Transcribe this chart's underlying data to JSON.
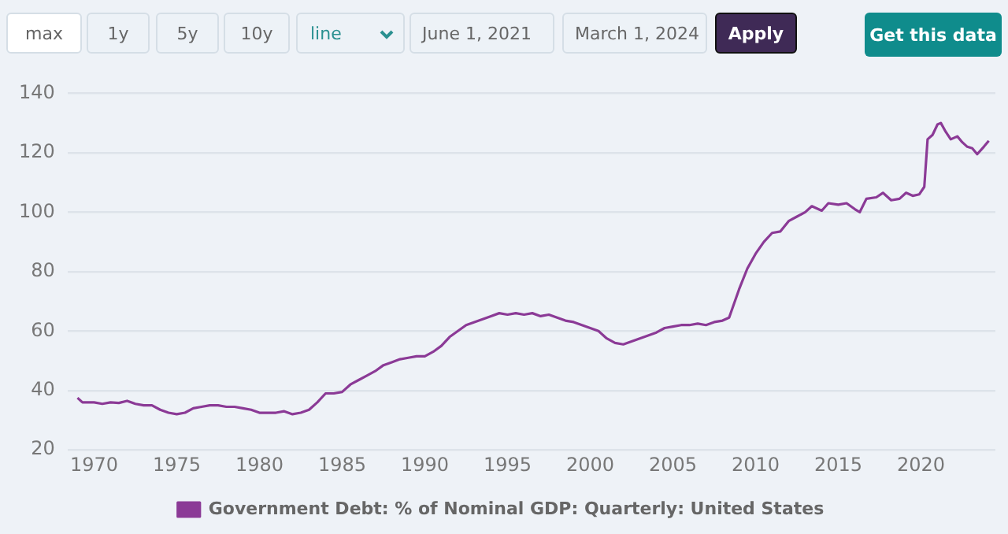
{
  "chart_data": {
    "type": "line",
    "annotations": [
      "max",
      "1y",
      "5y",
      "10y",
      "line",
      "June 1, 2021",
      "March 1, 2024",
      "Apply",
      "Get this data"
    ],
    "x": [
      1969.0,
      1969.3,
      1970.0,
      1970.5,
      1971.0,
      1971.5,
      1972.0,
      1972.5,
      1973.0,
      1973.5,
      1974.0,
      1974.5,
      1975.0,
      1975.5,
      1976.0,
      1976.5,
      1977.0,
      1977.5,
      1978.0,
      1978.5,
      1979.0,
      1979.5,
      1980.0,
      1980.5,
      1981.0,
      1981.5,
      1982.0,
      1982.5,
      1983.0,
      1983.5,
      1984.0,
      1984.5,
      1985.0,
      1985.5,
      1986.0,
      1986.5,
      1987.0,
      1987.5,
      1988.0,
      1988.5,
      1989.0,
      1989.5,
      1990.0,
      1990.5,
      1991.0,
      1991.5,
      1992.0,
      1992.5,
      1993.0,
      1993.5,
      1994.0,
      1994.5,
      1995.0,
      1995.5,
      1996.0,
      1996.5,
      1997.0,
      1997.5,
      1998.0,
      1998.5,
      1999.0,
      1999.5,
      2000.0,
      2000.5,
      2001.0,
      2001.5,
      2002.0,
      2002.5,
      2003.0,
      2003.5,
      2004.0,
      2004.5,
      2005.0,
      2005.5,
      2006.0,
      2006.5,
      2007.0,
      2007.5,
      2008.0,
      2008.4,
      2009.0,
      2009.5,
      2010.0,
      2010.5,
      2011.0,
      2011.5,
      2012.0,
      2012.5,
      2013.0,
      2013.4,
      2014.0,
      2014.4,
      2015.0,
      2015.5,
      2016.0,
      2016.3,
      2016.7,
      2017.3,
      2017.7,
      2018.2,
      2018.7,
      2019.1,
      2019.5,
      2019.9,
      2020.2,
      2020.4,
      2020.7,
      2021.0,
      2021.2,
      2021.5,
      2021.8,
      2022.2,
      2022.5,
      2022.8,
      2023.1,
      2023.4,
      2023.8,
      2024.1
    ],
    "series": [
      {
        "name": "Government Debt: % of Nominal GDP: Quarterly: United States",
        "color": "#8b3a96",
        "values": [
          37.5,
          36,
          36,
          35.5,
          36,
          35.8,
          36.5,
          35.5,
          35,
          35,
          33.5,
          32.5,
          32,
          32.5,
          34,
          34.5,
          35,
          35,
          34.5,
          34.5,
          34,
          33.5,
          32.5,
          32.5,
          32.5,
          33,
          32,
          32.5,
          33.5,
          36,
          39,
          39,
          39.5,
          42,
          43.5,
          45,
          46.5,
          48.5,
          49.5,
          50.5,
          51,
          51.5,
          51.5,
          53,
          55,
          58,
          60,
          62,
          63,
          64,
          65,
          66,
          65.5,
          66,
          65.5,
          66,
          65,
          65.5,
          64.5,
          63.5,
          63,
          62,
          61,
          60,
          57.5,
          56,
          55.5,
          56.5,
          57.5,
          58.5,
          59.5,
          61,
          61.5,
          62,
          62,
          62.5,
          62,
          63,
          63.5,
          64.5,
          74,
          81,
          86,
          90,
          93,
          93.5,
          97,
          98.5,
          100,
          102,
          100.5,
          103,
          102.5,
          103,
          101,
          100,
          104.5,
          105,
          106.5,
          104,
          104.5,
          106.5,
          105.5,
          106,
          108.5,
          124.5,
          126,
          129.5,
          130,
          127,
          124.5,
          125.5,
          123.5,
          122,
          121.5,
          119.5,
          122,
          124
        ]
      }
    ],
    "xlim": [
      1968.4,
      2024.5
    ],
    "xticks": [
      1970,
      1975,
      1980,
      1985,
      1990,
      1995,
      2000,
      2005,
      2010,
      2015,
      2020
    ],
    "ylim": [
      20,
      140
    ],
    "yticks": [
      20,
      40,
      60,
      80,
      100,
      120,
      140
    ],
    "grid": "y",
    "legend": "bottom",
    "marker": "none",
    "line_style": "solid"
  }
}
